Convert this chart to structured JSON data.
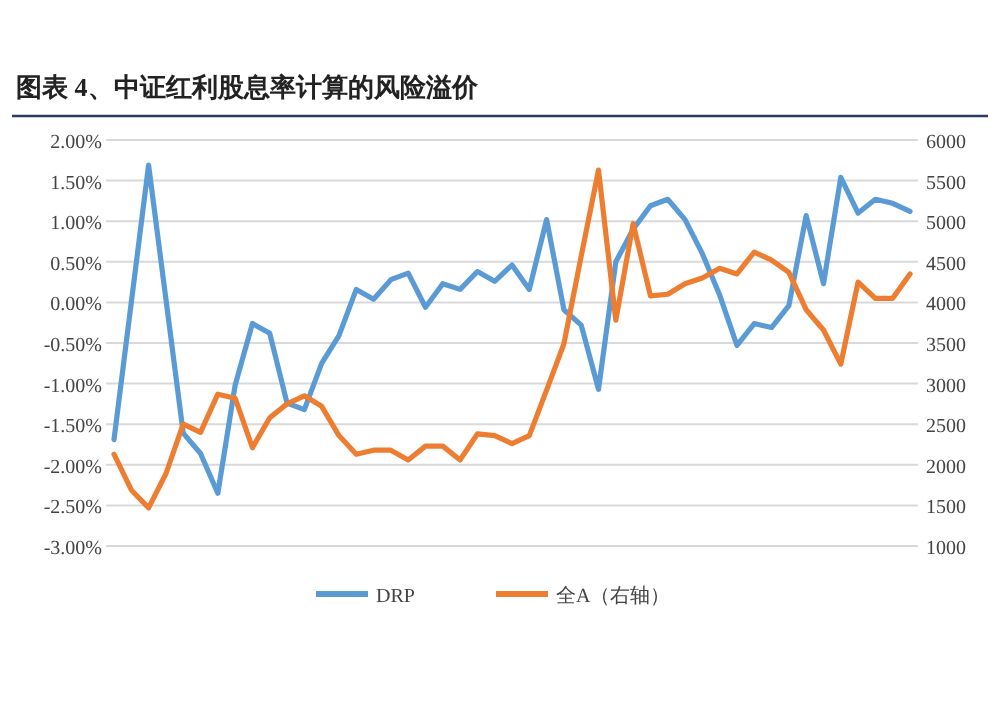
{
  "chart_data": {
    "type": "line",
    "title": "图表 4、中证红利股息率计算的风险溢价",
    "categories": [
      null,
      null,
      null,
      null,
      null,
      null,
      null,
      null,
      null,
      null,
      null,
      null,
      null,
      null,
      null,
      null,
      null,
      null,
      null,
      null,
      null,
      null,
      null,
      null,
      null,
      null,
      null,
      null,
      null,
      null,
      null,
      null,
      null,
      null,
      null,
      null,
      null,
      null,
      null,
      null,
      null,
      null,
      null,
      null,
      null,
      null,
      null
    ],
    "series": [
      {
        "name": "DRP",
        "color": "#5b9bd5",
        "values": [
          -1.69,
          0.0,
          1.69,
          0.04,
          -1.61,
          -1.86,
          -2.35,
          -1.02,
          -0.26,
          -0.38,
          -1.24,
          -1.32,
          -0.75,
          -0.41,
          0.16,
          0.04,
          0.28,
          0.36,
          -0.06,
          0.23,
          0.16,
          0.38,
          0.26,
          0.46,
          0.16,
          1.02,
          -0.09,
          -0.28,
          -1.07,
          0.5,
          0.9,
          1.19,
          1.27,
          1.02,
          0.6,
          0.09,
          -0.53,
          -0.26,
          -0.31,
          -0.04,
          1.07,
          0.23,
          1.54,
          1.1,
          1.27,
          1.22,
          1.12
        ]
      },
      {
        "name": "全A（右轴）",
        "color": "#ed7d31",
        "axis": "y2",
        "values": [
          2130,
          1690,
          1470,
          1890,
          2500,
          2400,
          2870,
          2820,
          2210,
          2580,
          2750,
          2850,
          2720,
          2360,
          2130,
          2180,
          2180,
          2060,
          2230,
          2230,
          2060,
          2380,
          2360,
          2260,
          2360,
          2920,
          3490,
          4570,
          5630,
          3780,
          4970,
          4080,
          4100,
          4230,
          4300,
          4420,
          4350,
          4620,
          4520,
          4370,
          3910,
          3660,
          3240,
          4250,
          4050,
          4050,
          4350
        ]
      }
    ],
    "ylim": [
      -3,
      2
    ],
    "yticks": [
      {
        "value": 2,
        "label": "2.00%"
      },
      {
        "value": 1.5,
        "label": "1.50%"
      },
      {
        "value": 1,
        "label": "1.00%"
      },
      {
        "value": 0.5,
        "label": "0.50%"
      },
      {
        "value": 0,
        "label": "0.00%"
      },
      {
        "value": -0.5,
        "label": "-0.50%"
      },
      {
        "value": -1,
        "label": "-1.00%"
      },
      {
        "value": -1.5,
        "label": "-1.50%"
      },
      {
        "value": -2,
        "label": "-2.00%"
      },
      {
        "value": -2.5,
        "label": "-2.50%"
      },
      {
        "value": -3,
        "label": "-3.00%"
      }
    ],
    "y2lim": [
      1000,
      6000
    ],
    "y2ticks": [
      6000,
      5500,
      5000,
      4500,
      4000,
      3500,
      3000,
      2500,
      2000,
      1500,
      1000
    ],
    "grid": "y",
    "legend": "bottom"
  }
}
